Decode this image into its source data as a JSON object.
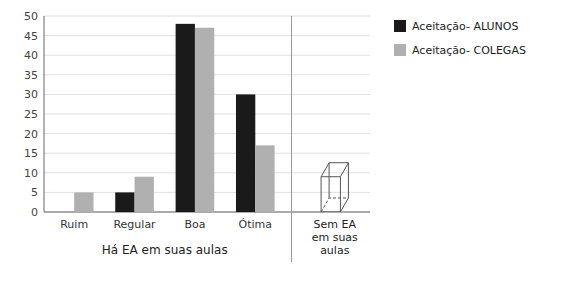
{
  "chart_data": {
    "type": "bar",
    "categories": [
      "Ruim",
      "Regular",
      "Boa",
      "Ótima"
    ],
    "series": [
      {
        "name": "Aceitação- ALUNOS",
        "color": "#1a1a1a",
        "values": [
          0,
          5,
          48,
          30
        ]
      },
      {
        "name": "Aceitação- COLEGAS",
        "color": "#b0b0b0",
        "values": [
          5,
          9,
          47,
          17
        ]
      }
    ],
    "xlabel": "Há EA em suas aulas",
    "sem_ea": {
      "label": "Sem EA\nem suas\naulas",
      "value": 9
    },
    "ylim": [
      0,
      50
    ],
    "yticks": [
      0,
      5,
      10,
      15,
      20,
      25,
      30,
      35,
      40,
      45,
      50
    ],
    "grid": true,
    "legend": "right"
  }
}
